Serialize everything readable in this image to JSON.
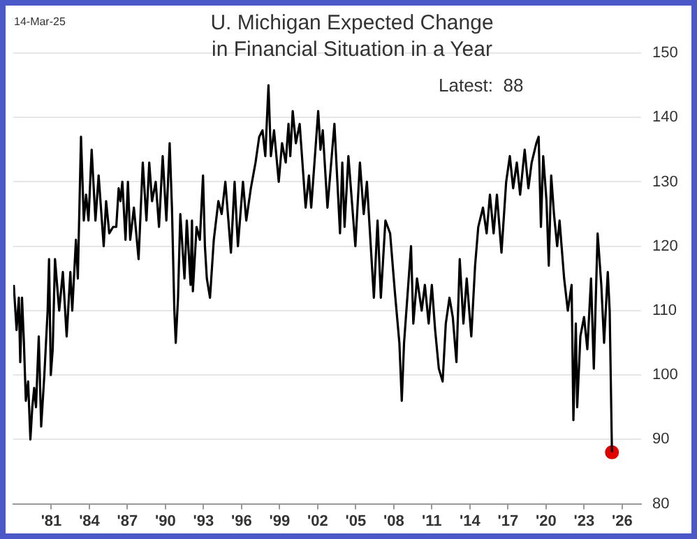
{
  "chart_data": {
    "type": "line",
    "title": "U. Michigan Expected Change\nin Financial Situation in a Year",
    "annotations": [
      "14-Mar-25",
      "Latest:  88"
    ],
    "xlim": [
      1978,
      2027.5
    ],
    "xticks": [
      {
        "value": 1981,
        "label": "'81"
      },
      {
        "value": 1984,
        "label": "'84"
      },
      {
        "value": 1987,
        "label": "'87"
      },
      {
        "value": 1990,
        "label": "'90"
      },
      {
        "value": 1993,
        "label": "'93"
      },
      {
        "value": 1996,
        "label": "'96"
      },
      {
        "value": 1999,
        "label": "'99"
      },
      {
        "value": 2002,
        "label": "'02"
      },
      {
        "value": 2005,
        "label": "'05"
      },
      {
        "value": 2008,
        "label": "'08"
      },
      {
        "value": 2011,
        "label": "'11"
      },
      {
        "value": 2014,
        "label": "'14"
      },
      {
        "value": 2017,
        "label": "'17"
      },
      {
        "value": 2020,
        "label": "'20"
      },
      {
        "value": 2023,
        "label": "'23"
      },
      {
        "value": 2026,
        "label": "'26"
      }
    ],
    "ylim": [
      80,
      150
    ],
    "yticks": [
      80,
      90,
      100,
      110,
      120,
      130,
      140,
      150
    ],
    "grid": "y",
    "legend": false,
    "series": [
      {
        "color": "#000000",
        "marker": "none",
        "x": [
          1978.04,
          1978.26,
          1978.44,
          1978.55,
          1978.69,
          1978.84,
          1978.99,
          1979.17,
          1979.35,
          1979.5,
          1979.65,
          1979.79,
          1980.01,
          1980.2,
          1980.45,
          1980.71,
          1980.82,
          1980.96,
          1981.11,
          1981.29,
          1981.62,
          1981.91,
          1982.21,
          1982.5,
          1982.65,
          1982.94,
          1983.09,
          1983.34,
          1983.56,
          1983.74,
          1983.93,
          1984.18,
          1984.48,
          1984.73,
          1985.13,
          1985.32,
          1985.57,
          1985.87,
          1986.12,
          1986.31,
          1986.45,
          1986.6,
          1986.85,
          1987.04,
          1987.22,
          1987.51,
          1987.88,
          1988.21,
          1988.5,
          1988.72,
          1988.94,
          1989.23,
          1989.49,
          1989.78,
          1990.07,
          1990.33,
          1990.51,
          1990.7,
          1990.81,
          1990.99,
          1991.17,
          1991.5,
          1991.68,
          1991.98,
          1992.09,
          1992.16,
          1992.45,
          1992.71,
          1992.96,
          1993.11,
          1993.26,
          1993.51,
          1993.81,
          1994.17,
          1994.43,
          1994.72,
          1995.16,
          1995.45,
          1995.71,
          1996.11,
          1996.37,
          1996.73,
          1997.1,
          1997.39,
          1997.65,
          1997.87,
          1998.12,
          1998.31,
          1998.56,
          1998.93,
          1999.19,
          1999.48,
          1999.7,
          1999.84,
          2000.03,
          2000.28,
          2000.58,
          2001.05,
          2001.31,
          2001.49,
          2002.04,
          2002.22,
          2002.4,
          2002.77,
          2003.32,
          2003.76,
          2003.94,
          2004.12,
          2004.42,
          2004.97,
          2005.33,
          2005.63,
          2005.88,
          2006.43,
          2006.72,
          2006.98,
          2007.34,
          2007.71,
          2008.08,
          2008.44,
          2008.63,
          2008.81,
          2009.36,
          2009.54,
          2009.83,
          2010.2,
          2010.45,
          2010.75,
          2011.0,
          2011.26,
          2011.55,
          2011.85,
          2012.1,
          2012.39,
          2012.65,
          2012.94,
          2013.2,
          2013.49,
          2013.75,
          2014.11,
          2014.41,
          2014.66,
          2015.03,
          2015.32,
          2015.58,
          2015.87,
          2016.13,
          2016.49,
          2016.86,
          2017.15,
          2017.41,
          2017.7,
          2017.96,
          2018.32,
          2018.61,
          2018.87,
          2019.24,
          2019.42,
          2019.6,
          2019.78,
          2020.04,
          2020.22,
          2020.41,
          2020.63,
          2020.88,
          2021.07,
          2021.43,
          2021.72,
          2022.02,
          2022.16,
          2022.35,
          2022.46,
          2022.71,
          2023.0,
          2023.26,
          2023.55,
          2023.77,
          2024.07,
          2024.36,
          2024.58,
          2024.87,
          2025.02,
          2025.2
        ],
        "values": [
          114,
          107,
          112,
          102,
          112,
          105,
          96,
          99,
          90,
          95,
          98,
          95,
          106,
          92,
          100,
          110,
          118,
          100,
          104,
          118,
          110,
          116,
          106,
          116,
          110,
          121,
          115,
          137,
          124,
          128,
          124,
          135,
          124,
          131,
          120,
          127,
          122,
          123,
          123,
          129,
          127,
          130,
          121,
          130,
          121,
          126,
          118,
          133,
          124,
          133,
          127,
          130,
          123,
          134,
          124,
          136,
          126,
          110,
          105,
          112,
          125,
          115,
          124,
          114,
          124,
          113,
          123,
          121,
          131,
          120,
          115,
          112,
          121,
          127,
          125,
          130,
          119,
          130,
          120,
          130,
          124,
          129,
          133,
          137,
          138,
          134,
          145,
          134,
          138,
          130,
          136,
          133,
          139,
          134,
          141,
          136,
          139,
          126,
          131,
          126,
          141,
          135,
          138,
          126,
          139,
          122,
          133,
          123,
          134,
          120,
          133,
          125,
          130,
          112,
          124,
          112,
          124,
          122,
          113,
          105,
          96,
          105,
          120,
          108,
          115,
          110,
          114,
          108,
          114,
          107,
          101,
          99,
          108,
          112,
          109,
          102,
          118,
          108,
          115,
          106,
          117,
          123,
          126,
          122,
          128,
          122,
          128,
          119,
          130,
          134,
          129,
          133,
          128,
          135,
          129,
          133,
          136,
          137,
          123,
          134,
          127,
          117,
          131,
          125,
          120,
          124,
          115,
          110,
          114,
          93,
          108,
          95,
          106,
          109,
          104,
          115,
          101,
          122,
          114,
          105,
          116,
          110,
          88
        ]
      },
      {
        "type": "scatter",
        "color": "#e00000",
        "marker": "circle",
        "x": [
          2025.2
        ],
        "values": [
          88
        ]
      }
    ]
  }
}
